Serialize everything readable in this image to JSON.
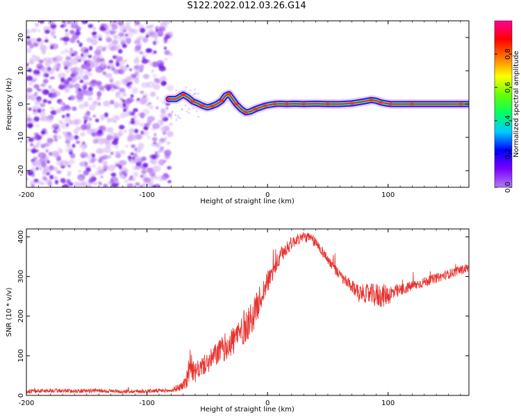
{
  "figure": {
    "title": "S122.2022.012.03.26.G14"
  },
  "chart_data": [
    {
      "type": "heatmap",
      "title": "S122.2022.012.03.26.G14",
      "xlabel": "Height of straight line (km)",
      "ylabel": "Frequency (Hz)",
      "xlim": [
        -200,
        167
      ],
      "ylim": [
        -25,
        25
      ],
      "x_ticks": [
        -200,
        -100,
        0,
        100
      ],
      "y_ticks": [
        -20,
        -10,
        0,
        10,
        20
      ],
      "noise_region": {
        "x": [
          -200,
          -80
        ],
        "y": [
          -25,
          25
        ],
        "colors": [
          "#cfa8f5",
          "#9d52ef",
          "#6a0ee6"
        ]
      },
      "track": {
        "x": [
          -82,
          -76,
          -70,
          -66,
          -62,
          -58,
          -54,
          -50,
          -46,
          -42,
          -38,
          -35,
          -32,
          -29,
          -26,
          -22,
          -18,
          -14,
          -10,
          -6,
          -2,
          2,
          6,
          10,
          16,
          22,
          30,
          40,
          50,
          60,
          70,
          80,
          86,
          90,
          94,
          98,
          102,
          110,
          120,
          140,
          160,
          167
        ],
        "y": [
          1.5,
          1.5,
          2.8,
          2.0,
          0.8,
          0.2,
          -0.5,
          -1.0,
          -0.6,
          0.0,
          1.0,
          2.5,
          3.0,
          1.5,
          0.0,
          -1.5,
          -2.5,
          -2.2,
          -1.5,
          -1.0,
          -0.5,
          -0.2,
          0.0,
          0.1,
          0.0,
          0.1,
          0.0,
          0.1,
          0.0,
          0.0,
          0.2,
          0.8,
          1.2,
          1.0,
          0.5,
          0.2,
          0.0,
          0.0,
          0.0,
          0.0,
          0.0,
          0.0
        ]
      },
      "colorbar": {
        "label": "Normalized spectral amplitude",
        "ticks": [
          0.0,
          0.2,
          0.4,
          0.6,
          0.8
        ],
        "range": [
          0,
          1
        ],
        "stops": [
          "#b07cf5",
          "#7a00ff",
          "#0000ff",
          "#00ccff",
          "#00ff66",
          "#66ff00",
          "#ffff00",
          "#ff7700",
          "#ff0000",
          "#ff0099"
        ]
      },
      "grid": false
    },
    {
      "type": "line",
      "xlabel": "Height of straight line (km)",
      "ylabel": "SNR (10 * v/v)",
      "xlim": [
        -200,
        167
      ],
      "ylim": [
        0,
        420
      ],
      "x_ticks": [
        -200,
        -100,
        0,
        100
      ],
      "y_ticks": [
        0,
        100,
        200,
        300,
        400
      ],
      "grid": false,
      "series": [
        {
          "color": "#e8322e",
          "x": [
            -200,
            -180,
            -160,
            -140,
            -120,
            -100,
            -80,
            -70,
            -66,
            -64,
            -62,
            -60,
            -56,
            -52,
            -48,
            -44,
            -40,
            -36,
            -32,
            -28,
            -24,
            -20,
            -16,
            -12,
            -8,
            -4,
            0,
            4,
            8,
            12,
            16,
            20,
            24,
            28,
            32,
            36,
            40,
            44,
            48,
            52,
            56,
            60,
            64,
            68,
            72,
            76,
            80,
            84,
            88,
            92,
            96,
            100,
            104,
            108,
            112,
            116,
            120,
            124,
            128,
            132,
            136,
            140,
            144,
            148,
            152,
            156,
            160,
            164,
            167
          ],
          "y": [
            10,
            12,
            11,
            12,
            10,
            11,
            12,
            25,
            50,
            90,
            60,
            55,
            70,
            78,
            85,
            100,
            110,
            120,
            130,
            140,
            155,
            170,
            185,
            200,
            230,
            260,
            285,
            310,
            335,
            355,
            372,
            385,
            392,
            398,
            400,
            395,
            385,
            370,
            352,
            335,
            318,
            302,
            290,
            278,
            268,
            262,
            258,
            255,
            253,
            252,
            252,
            254,
            258,
            262,
            267,
            272,
            276,
            280,
            284,
            288,
            292,
            296,
            300,
            304,
            308,
            312,
            316,
            320,
            322
          ],
          "noise": [
            5,
            5,
            5,
            5,
            5,
            5,
            5,
            12,
            35,
            30,
            28,
            25,
            25,
            25,
            28,
            30,
            32,
            35,
            38,
            40,
            45,
            45,
            45,
            40,
            38,
            32,
            28,
            25,
            22,
            20,
            18,
            16,
            14,
            14,
            14,
            14,
            14,
            13,
            13,
            13,
            13,
            14,
            15,
            16,
            18,
            20,
            22,
            26,
            30,
            32,
            30,
            26,
            22,
            18,
            16,
            14,
            14,
            13,
            13,
            13,
            12,
            12,
            12,
            12,
            12,
            12,
            12,
            12,
            12
          ]
        }
      ]
    }
  ]
}
